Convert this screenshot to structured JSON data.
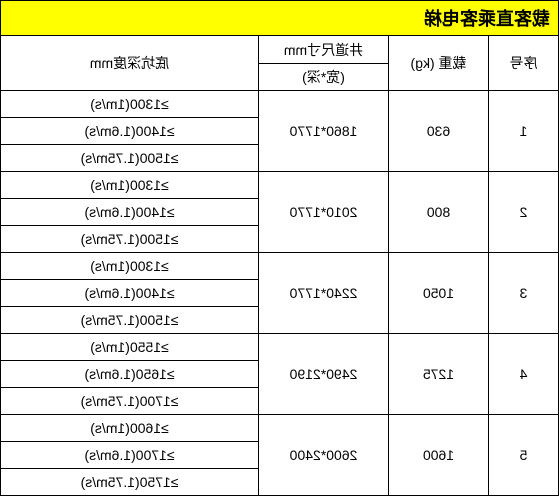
{
  "title": "载客直乘客电梯",
  "headers": {
    "seq": "序号",
    "load": "载重 (kg)",
    "size_main": "井道尺寸mm",
    "size_sub": "(宽*深)",
    "depth": "底坑深度mm"
  },
  "groups": [
    {
      "seq": "1",
      "load": "630",
      "size": "1860*1770",
      "depths": [
        "≥1300(1m/s)",
        "≥1400(1.6m/s)",
        "≥1500(1.75m/s)"
      ]
    },
    {
      "seq": "2",
      "load": "800",
      "size": "2010*1770",
      "depths": [
        "≥1300(1m/s)",
        "≥1400(1.6m/s)",
        "≥1500(1.75m/s)"
      ]
    },
    {
      "seq": "3",
      "load": "1050",
      "size": "2240*1770",
      "depths": [
        "≥1300(1m/s)",
        "≥1400(1.6m/s)",
        "≥1500(1.75m/s)"
      ]
    },
    {
      "seq": "4",
      "load": "1275",
      "size": "2490*2190",
      "depths": [
        "≥1550(1m/s)",
        "≥1650(1.6m/s)",
        "≥1700(1.75m/s)"
      ]
    },
    {
      "seq": "5",
      "load": "1600",
      "size": "2600*2400",
      "depths": [
        "≥1600(1m/s)",
        "≥1700(1.6m/s)",
        "≥1750(1.75m/s)"
      ]
    }
  ],
  "colors": {
    "title_bg": "#ffff00",
    "border": "#000000",
    "bg": "#ffffff"
  }
}
